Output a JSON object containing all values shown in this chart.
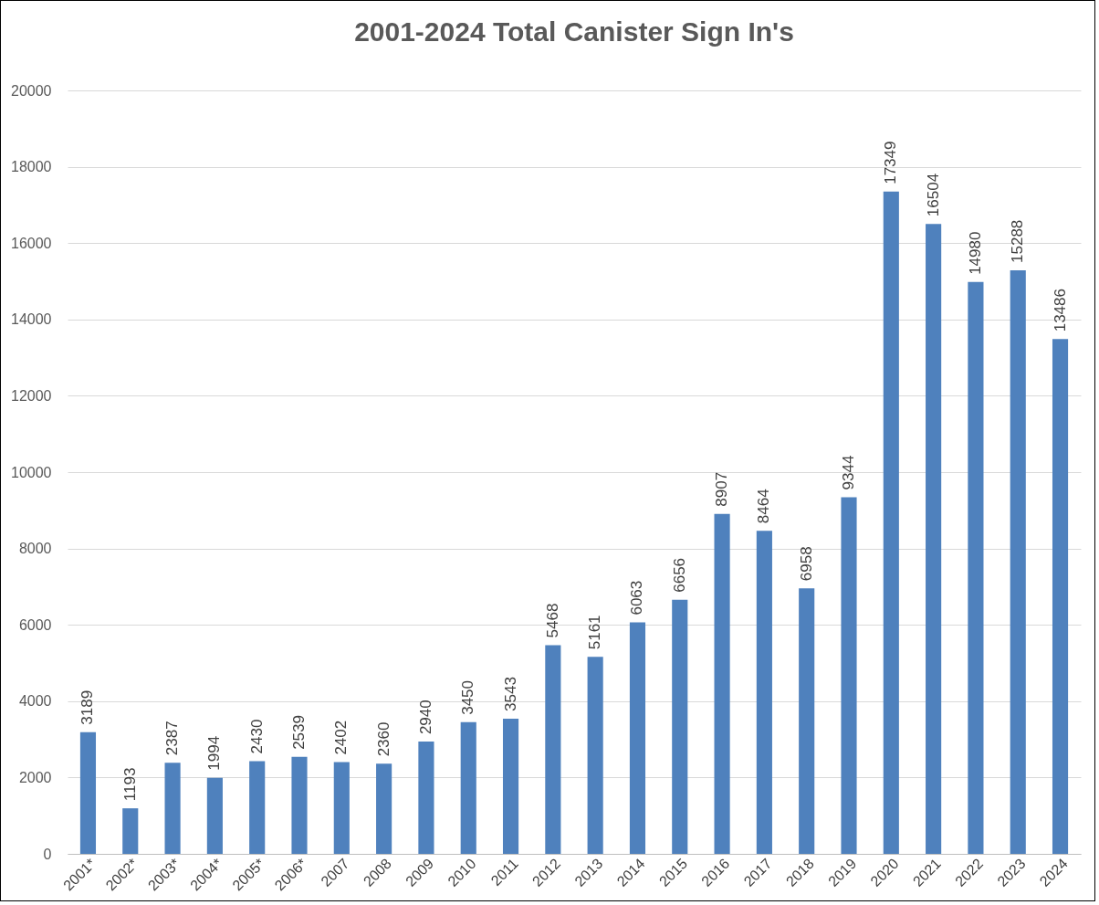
{
  "chart_data": {
    "type": "bar",
    "title": "2001-2024 Total Canister Sign In's",
    "categories": [
      "2001*",
      "2002*",
      "2003*",
      "2004*",
      "2005*",
      "2006*",
      "2007",
      "2008",
      "2009",
      "2010",
      "2011",
      "2012",
      "2013",
      "2014",
      "2015",
      "2016",
      "2017",
      "2018",
      "2019",
      "2020",
      "2021",
      "2022",
      "2023",
      "2024"
    ],
    "values": [
      3189,
      1193,
      2387,
      1994,
      2430,
      2539,
      2402,
      2360,
      2940,
      3450,
      3543,
      5468,
      5161,
      6063,
      6656,
      8907,
      8464,
      6958,
      9344,
      17349,
      16504,
      14980,
      15288,
      13486
    ],
    "color": "#4f81bd",
    "ylim": [
      0,
      20000
    ],
    "yticks": [
      0,
      2000,
      4000,
      6000,
      8000,
      10000,
      12000,
      14000,
      16000,
      18000,
      20000
    ],
    "grid": "y",
    "data_labels": true
  }
}
